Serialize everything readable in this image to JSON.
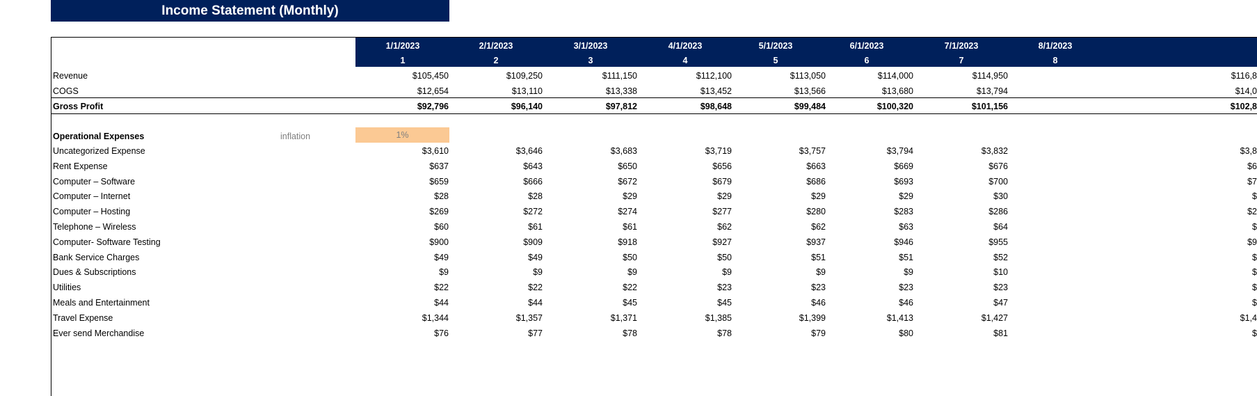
{
  "title": "Income Statement (Monthly)",
  "periods": [
    {
      "date": "1/1/2023",
      "num": "1"
    },
    {
      "date": "2/1/2023",
      "num": "2"
    },
    {
      "date": "3/1/2023",
      "num": "3"
    },
    {
      "date": "4/1/2023",
      "num": "4"
    },
    {
      "date": "5/1/2023",
      "num": "5"
    },
    {
      "date": "6/1/2023",
      "num": "6"
    },
    {
      "date": "7/1/2023",
      "num": "7"
    },
    {
      "date": "8/1/2023",
      "num": "8"
    }
  ],
  "summary_rows": [
    {
      "label": "Revenue",
      "bold": false,
      "values": [
        "$105,450",
        "$109,250",
        "$111,150",
        "$112,100",
        "$113,050",
        "$114,000",
        "$114,950",
        "$116,8"
      ]
    },
    {
      "label": "COGS",
      "bold": false,
      "values": [
        "$12,654",
        "$13,110",
        "$13,338",
        "$13,452",
        "$13,566",
        "$13,680",
        "$13,794",
        "$14,0"
      ]
    },
    {
      "label": "Gross Profit",
      "bold": true,
      "values": [
        "$92,796",
        "$96,140",
        "$97,812",
        "$98,648",
        "$99,484",
        "$100,320",
        "$101,156",
        "$102,8"
      ]
    }
  ],
  "opex": {
    "header": "Operational Expenses",
    "inflation_label": "inflation",
    "inflation_value": "1%",
    "inflation_color": "#fbc994",
    "rows": [
      {
        "label": "Uncategorized Expense",
        "values": [
          "$3,610",
          "$3,646",
          "$3,683",
          "$3,719",
          "$3,757",
          "$3,794",
          "$3,832",
          "$3,8"
        ]
      },
      {
        "label": "Rent Expense",
        "values": [
          "$637",
          "$643",
          "$650",
          "$656",
          "$663",
          "$669",
          "$676",
          "$6"
        ]
      },
      {
        "label": "Computer – Software",
        "values": [
          "$659",
          "$666",
          "$672",
          "$679",
          "$686",
          "$693",
          "$700",
          "$7"
        ]
      },
      {
        "label": "Computer – Internet",
        "values": [
          "$28",
          "$28",
          "$29",
          "$29",
          "$29",
          "$29",
          "$30",
          "$"
        ]
      },
      {
        "label": "Computer – Hosting",
        "values": [
          "$269",
          "$272",
          "$274",
          "$277",
          "$280",
          "$283",
          "$286",
          "$2"
        ]
      },
      {
        "label": "Telephone – Wireless",
        "values": [
          "$60",
          "$61",
          "$61",
          "$62",
          "$62",
          "$63",
          "$64",
          "$"
        ]
      },
      {
        "label": "Computer- Software Testing",
        "values": [
          "$900",
          "$909",
          "$918",
          "$927",
          "$937",
          "$946",
          "$955",
          "$9"
        ]
      },
      {
        "label": "Bank Service Charges",
        "values": [
          "$49",
          "$49",
          "$50",
          "$50",
          "$51",
          "$51",
          "$52",
          "$"
        ]
      },
      {
        "label": "Dues & Subscriptions",
        "values": [
          "$9",
          "$9",
          "$9",
          "$9",
          "$9",
          "$9",
          "$10",
          "$"
        ]
      },
      {
        "label": "Utilities",
        "values": [
          "$22",
          "$22",
          "$22",
          "$23",
          "$23",
          "$23",
          "$23",
          "$"
        ]
      },
      {
        "label": "Meals and Entertainment",
        "values": [
          "$44",
          "$44",
          "$45",
          "$45",
          "$46",
          "$46",
          "$47",
          "$"
        ]
      },
      {
        "label": "Travel Expense",
        "values": [
          "$1,344",
          "$1,357",
          "$1,371",
          "$1,385",
          "$1,399",
          "$1,413",
          "$1,427",
          "$1,4"
        ]
      },
      {
        "label": "Ever send Merchandise",
        "values": [
          "$76",
          "$77",
          "$78",
          "$78",
          "$79",
          "$80",
          "$81",
          "$"
        ]
      }
    ]
  },
  "colors": {
    "header_bg": "#00205b",
    "header_text": "#ffffff"
  }
}
